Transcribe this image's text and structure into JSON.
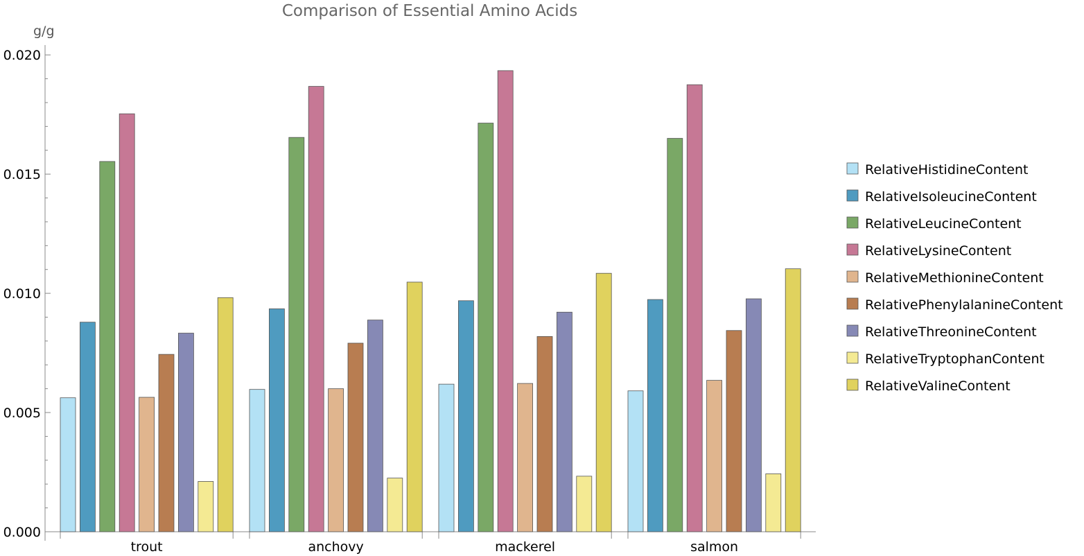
{
  "chart_data": {
    "type": "bar",
    "title": "Comparison of Essential Amino Acids",
    "ylabel": "g/g",
    "xlabel": "",
    "ylim": [
      0,
      0.0205
    ],
    "yticks": [
      "0.000",
      "0.005",
      "0.010",
      "0.015",
      "0.020"
    ],
    "categories": [
      "trout",
      "anchovy",
      "mackerel",
      "salmon"
    ],
    "legend_position": "right",
    "series": [
      {
        "name": "RelativeHistidineContent",
        "color": "#b3e1f5",
        "values": [
          0.00562,
          0.00597,
          0.00619,
          0.00591
        ]
      },
      {
        "name": "RelativeIsoleucineContent",
        "color": "#4f9bc0",
        "values": [
          0.00879,
          0.00935,
          0.00969,
          0.00974
        ]
      },
      {
        "name": "RelativeLeucineContent",
        "color": "#7aa866",
        "values": [
          0.01553,
          0.01654,
          0.01714,
          0.0165
        ]
      },
      {
        "name": "RelativeLysineContent",
        "color": "#c67895",
        "values": [
          0.01753,
          0.01868,
          0.01934,
          0.01875
        ]
      },
      {
        "name": "RelativeMethionineContent",
        "color": "#e0b58e",
        "values": [
          0.00564,
          0.006,
          0.00622,
          0.00635
        ]
      },
      {
        "name": "RelativePhenylalanineContent",
        "color": "#b87d51",
        "values": [
          0.00744,
          0.00791,
          0.00819,
          0.00844
        ]
      },
      {
        "name": "RelativeThreonineContent",
        "color": "#8689b5",
        "values": [
          0.00833,
          0.00888,
          0.00921,
          0.00977
        ]
      },
      {
        "name": "RelativeTryptophanContent",
        "color": "#f4ea93",
        "values": [
          0.00211,
          0.00225,
          0.00233,
          0.00243
        ]
      },
      {
        "name": "RelativeValineContent",
        "color": "#e0d25e",
        "values": [
          0.00982,
          0.01047,
          0.01084,
          0.01103
        ]
      }
    ]
  }
}
